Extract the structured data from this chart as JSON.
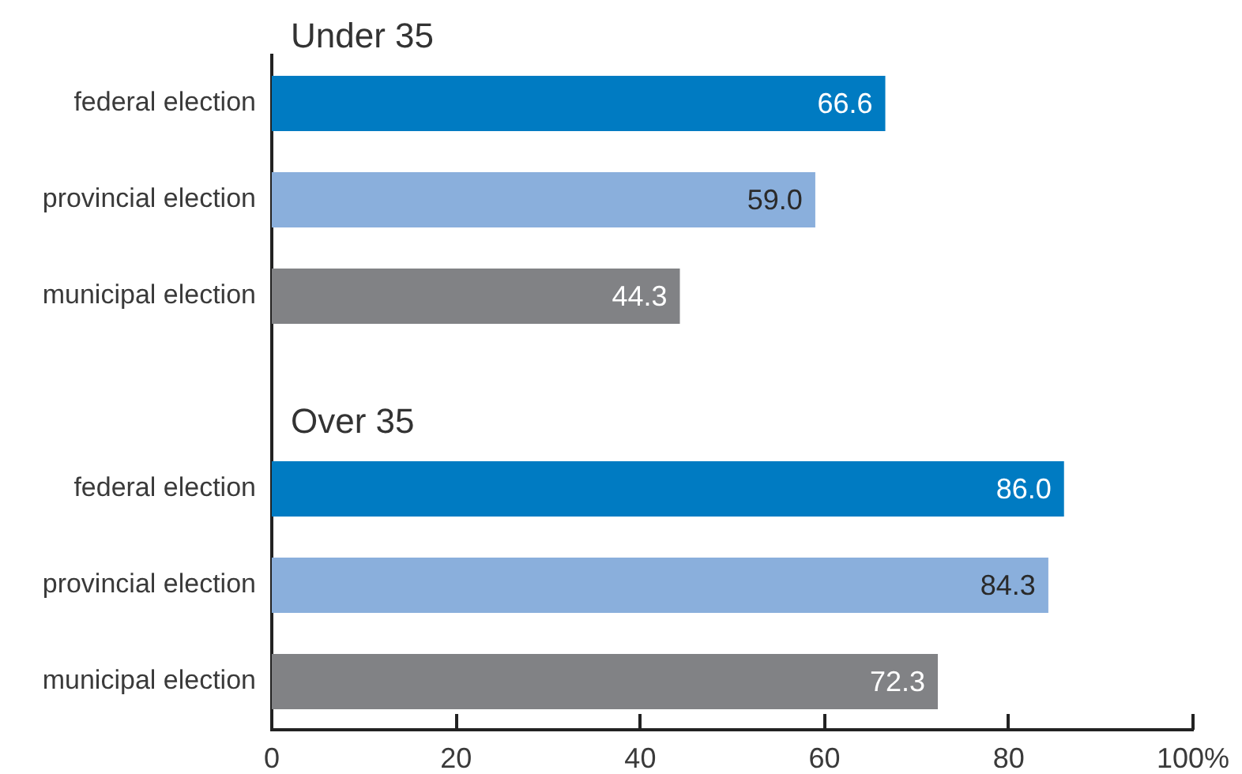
{
  "chart_data": {
    "type": "bar",
    "orientation": "horizontal",
    "categories": [
      "federal election",
      "provincial election",
      "municipal election",
      null,
      "federal election",
      "provincial election",
      "municipal election"
    ],
    "values": [
      66.6,
      59.0,
      44.3,
      null,
      86.0,
      84.3,
      72.3
    ],
    "value_labels": [
      "66.6",
      "59.0",
      "44.3",
      null,
      "86.0",
      "84.3",
      "72.3"
    ],
    "colors": [
      "#007bc2",
      "#8aafdc",
      "#818285",
      null,
      "#007bc2",
      "#8aafdc",
      "#818285"
    ],
    "xlim": [
      0,
      100
    ],
    "xticks": [
      0,
      20,
      40,
      60,
      80,
      {
        "value": 100,
        "label": "100%"
      }
    ],
    "annotations": [
      "Under 35",
      "Over 35"
    ]
  }
}
